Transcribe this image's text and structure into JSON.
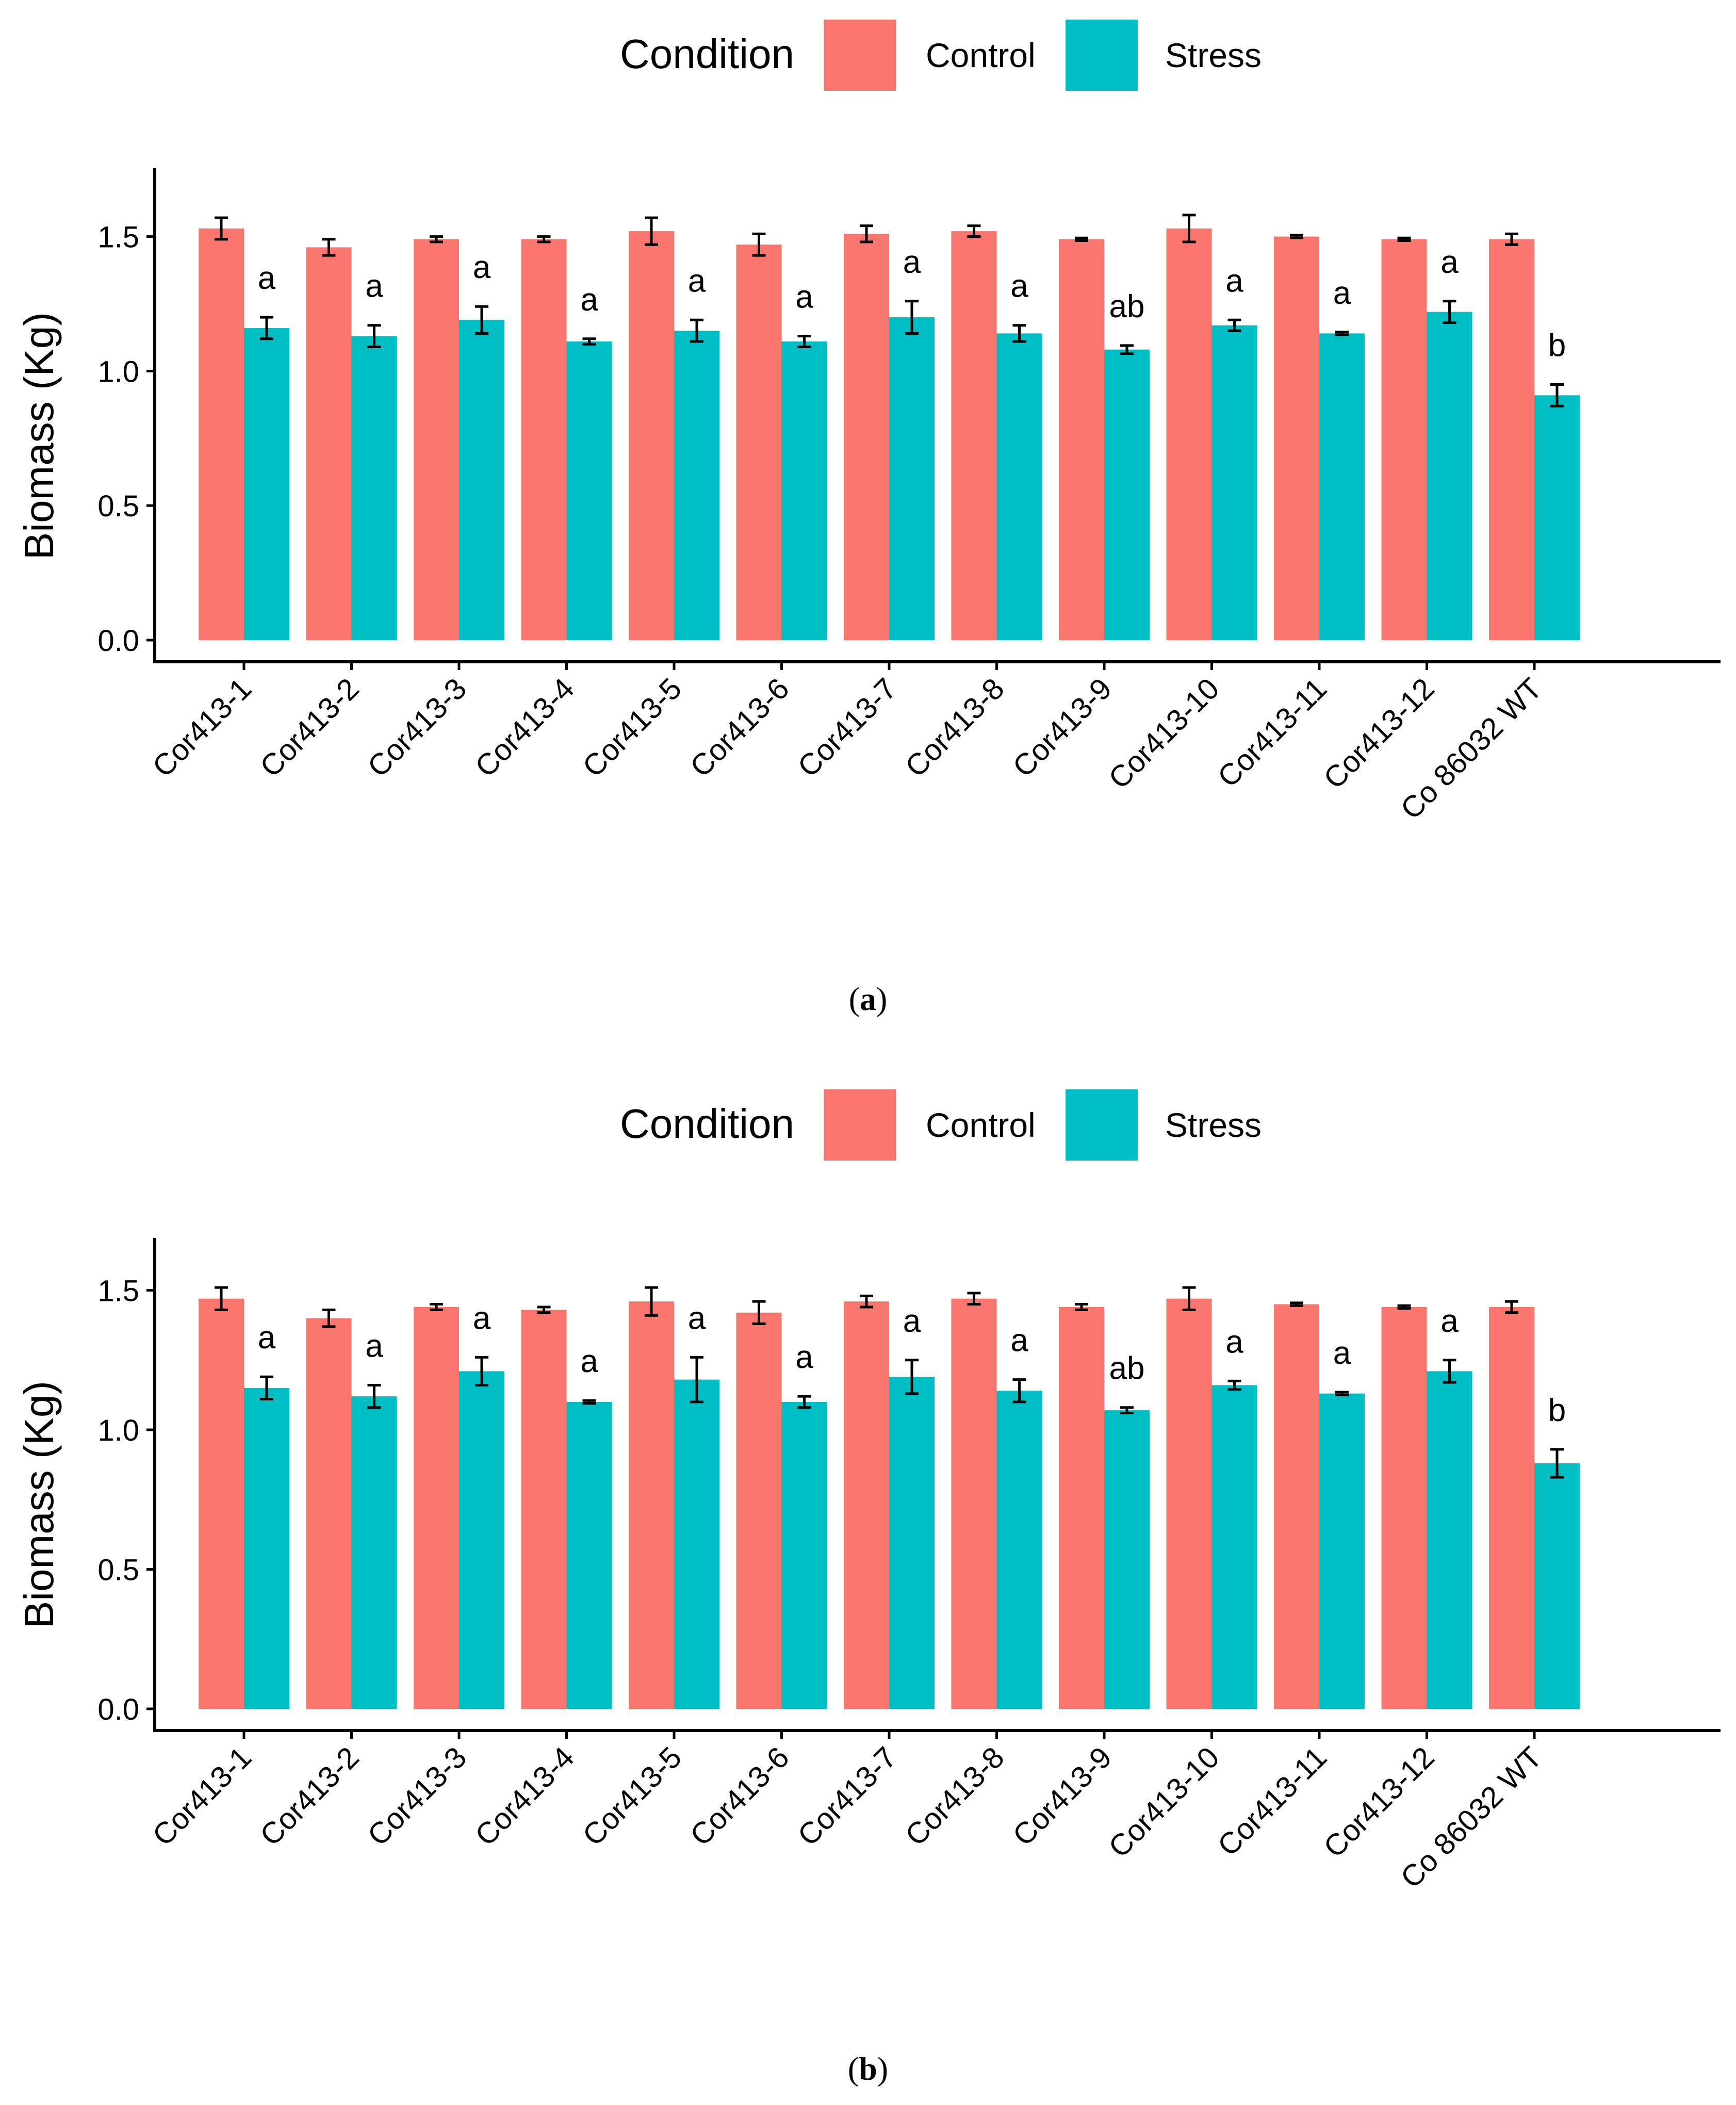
{
  "colors": {
    "control": "#F8766D",
    "stress": "#00BFC4",
    "axis": "#000000",
    "text": "#000000"
  },
  "chart_data": [
    {
      "type": "bar",
      "panel_label": "a",
      "legend": {
        "title": "Condition",
        "position": "top",
        "entries": [
          "Control",
          "Stress"
        ]
      },
      "ylabel": "Biomass (Kg)",
      "xlabel": "",
      "ylim": [
        0,
        1.75
      ],
      "yticks": [
        "0.0",
        "0.5",
        "1.0",
        "1.5"
      ],
      "grid": false,
      "categories": [
        "Cor413-1",
        "Cor413-2",
        "Cor413-3",
        "Cor413-4",
        "Cor413-5",
        "Cor413-6",
        "Cor413-7",
        "Cor413-8",
        "Cor413-9",
        "Cor413-10",
        "Cor413-11",
        "Cor413-12",
        "Co 86032 WT"
      ],
      "series": [
        {
          "name": "Control",
          "values": [
            1.53,
            1.46,
            1.49,
            1.49,
            1.52,
            1.47,
            1.51,
            1.52,
            1.49,
            1.53,
            1.5,
            1.49,
            1.49
          ],
          "errors": [
            0.04,
            0.03,
            0.01,
            0.01,
            0.05,
            0.04,
            0.03,
            0.02,
            0.005,
            0.05,
            0.005,
            0.005,
            0.02
          ]
        },
        {
          "name": "Stress",
          "values": [
            1.16,
            1.13,
            1.19,
            1.11,
            1.15,
            1.11,
            1.2,
            1.14,
            1.08,
            1.17,
            1.14,
            1.22,
            0.91
          ],
          "errors": [
            0.04,
            0.04,
            0.05,
            0.01,
            0.04,
            0.02,
            0.06,
            0.03,
            0.015,
            0.02,
            0.005,
            0.04,
            0.04
          ]
        }
      ],
      "annotations": [
        "a",
        "a",
        "a",
        "a",
        "a",
        "a",
        "a",
        "a",
        "ab",
        "a",
        "a",
        "a",
        "b"
      ]
    },
    {
      "type": "bar",
      "panel_label": "b",
      "legend": {
        "title": "Condition",
        "position": "top",
        "entries": [
          "Control",
          "Stress"
        ]
      },
      "ylabel": "Biomass (Kg)",
      "xlabel": "",
      "ylim": [
        0,
        1.7
      ],
      "yticks": [
        "0.0",
        "0.5",
        "1.0",
        "1.5"
      ],
      "grid": false,
      "categories": [
        "Cor413-1",
        "Cor413-2",
        "Cor413-3",
        "Cor413-4",
        "Cor413-5",
        "Cor413-6",
        "Cor413-7",
        "Cor413-8",
        "Cor413-9",
        "Cor413-10",
        "Cor413-11",
        "Cor413-12",
        "Co 86032 WT"
      ],
      "series": [
        {
          "name": "Control",
          "values": [
            1.47,
            1.4,
            1.44,
            1.43,
            1.46,
            1.42,
            1.46,
            1.47,
            1.44,
            1.47,
            1.45,
            1.44,
            1.44
          ],
          "errors": [
            0.04,
            0.03,
            0.01,
            0.01,
            0.05,
            0.04,
            0.02,
            0.02,
            0.01,
            0.04,
            0.005,
            0.005,
            0.02
          ]
        },
        {
          "name": "Stress",
          "values": [
            1.15,
            1.12,
            1.21,
            1.1,
            1.18,
            1.1,
            1.19,
            1.14,
            1.07,
            1.16,
            1.13,
            1.21,
            0.88
          ],
          "errors": [
            0.04,
            0.04,
            0.05,
            0.005,
            0.08,
            0.02,
            0.06,
            0.04,
            0.01,
            0.015,
            0.005,
            0.04,
            0.05
          ]
        }
      ],
      "annotations": [
        "a",
        "a",
        "a",
        "a",
        "a",
        "a",
        "a",
        "a",
        "ab",
        "a",
        "a",
        "a",
        "b"
      ]
    }
  ]
}
